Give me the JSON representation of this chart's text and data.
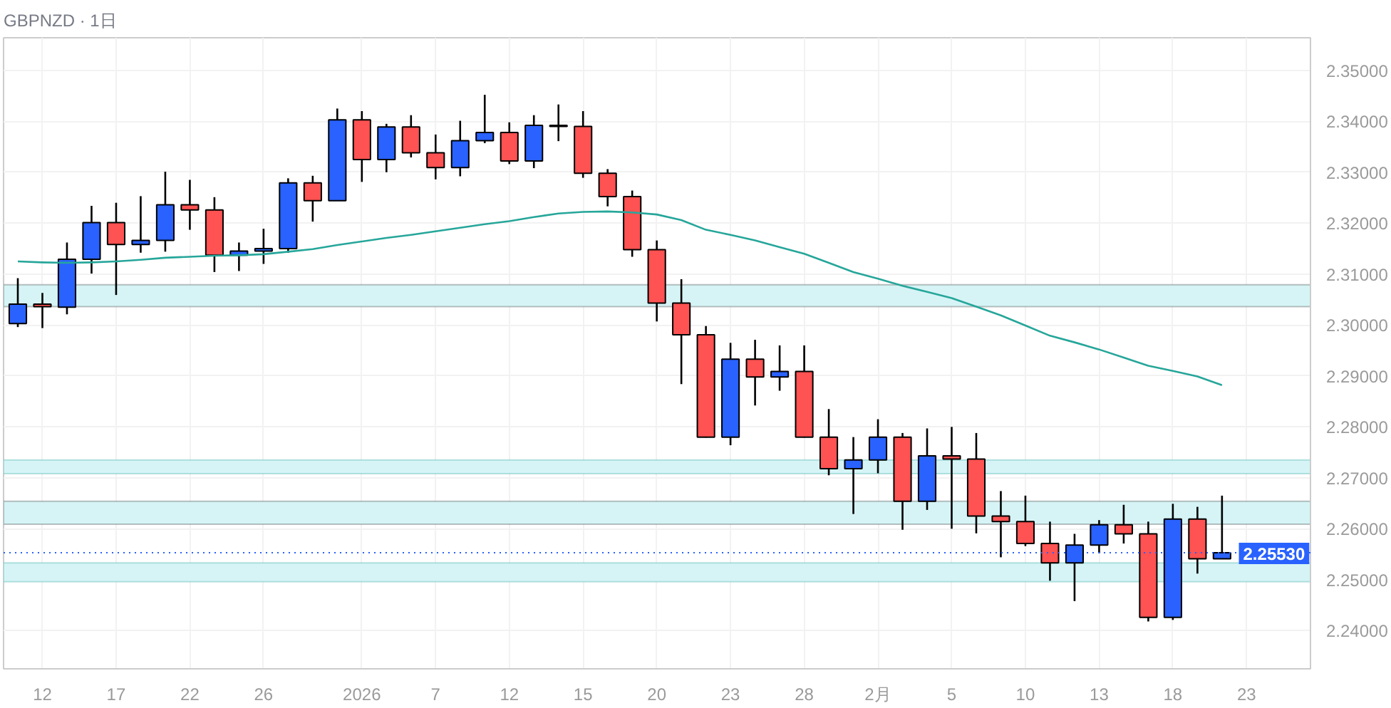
{
  "chart_data": {
    "type": "candlestick",
    "title": "GBPNZD · 1日",
    "categories": [
      null,
      "12",
      null,
      null,
      "17",
      null,
      null,
      "22",
      null,
      null,
      "26",
      null,
      null,
      null,
      "2026",
      null,
      null,
      "7",
      null,
      null,
      "12",
      null,
      null,
      "15",
      null,
      null,
      "20",
      null,
      null,
      "23",
      null,
      null,
      "28",
      null,
      null,
      "2月",
      null,
      null,
      "5",
      null,
      null,
      "10",
      null,
      null,
      "13",
      null,
      null,
      "18",
      null,
      null,
      "23"
    ],
    "ylim": [
      2.2325,
      2.3564
    ],
    "yticks": [
      {
        "value": 2.24,
        "label": "2.24000"
      },
      {
        "value": 2.25,
        "label": "2.25000"
      },
      {
        "value": 2.26,
        "label": "2.26000"
      },
      {
        "value": 2.27,
        "label": "2.27000"
      },
      {
        "value": 2.28,
        "label": "2.28000"
      },
      {
        "value": 2.29,
        "label": "2.29000"
      },
      {
        "value": 2.3,
        "label": "2.30000"
      },
      {
        "value": 2.31,
        "label": "2.31000"
      },
      {
        "value": 2.32,
        "label": "2.32000"
      },
      {
        "value": 2.33,
        "label": "2.33000"
      },
      {
        "value": 2.34,
        "label": "2.34000"
      },
      {
        "value": 2.35,
        "label": "2.35000"
      }
    ],
    "grid": true,
    "series": [
      {
        "type": "line",
        "color": "#26a69a",
        "values": [
          2.3125,
          2.3123,
          2.3122,
          2.3123,
          2.3125,
          2.3128,
          2.3132,
          2.3134,
          2.3136,
          2.3137,
          2.3139,
          2.3144,
          2.3149,
          2.3157,
          2.3164,
          2.3171,
          2.3177,
          2.3184,
          2.3191,
          2.3198,
          2.3204,
          2.3212,
          2.3219,
          2.3222,
          2.3223,
          2.3221,
          2.3217,
          2.3206,
          2.3187,
          2.3177,
          2.3166,
          2.3153,
          2.314,
          2.3122,
          2.3104,
          2.3091,
          2.3077,
          2.3065,
          2.3053,
          2.3036,
          2.3019,
          2.2999,
          2.2979,
          2.2966,
          2.2952,
          2.2936,
          2.292,
          2.291,
          2.2899,
          2.2882,
          null
        ]
      },
      {
        "ohlc": [
          [
            2.3003,
            2.3092,
            2.2996,
            2.3041
          ],
          [
            2.3041,
            2.3063,
            2.2994,
            2.3036
          ],
          [
            2.3035,
            2.3162,
            2.3021,
            2.3129
          ],
          [
            2.3129,
            2.3234,
            2.3101,
            2.3201
          ],
          [
            2.3201,
            2.324,
            2.3059,
            2.3158
          ],
          [
            2.3158,
            2.3253,
            2.3142,
            2.3166
          ],
          [
            2.3166,
            2.3301,
            2.3144,
            2.3236
          ],
          [
            2.3236,
            2.3285,
            2.3187,
            2.3226
          ],
          [
            2.3226,
            2.3251,
            2.3104,
            2.3137
          ],
          [
            2.3137,
            2.3162,
            2.3106,
            2.3145
          ],
          [
            2.3145,
            2.3189,
            2.312,
            2.315
          ],
          [
            2.315,
            2.3288,
            2.3142,
            2.3279
          ],
          [
            2.3279,
            2.3293,
            2.3203,
            2.3244
          ],
          [
            2.3244,
            2.3425,
            2.3244,
            2.3403
          ],
          [
            2.3403,
            2.342,
            2.3281,
            2.3325
          ],
          [
            2.3325,
            2.3395,
            2.33,
            2.3389
          ],
          [
            2.3389,
            2.3412,
            2.3329,
            2.3338
          ],
          [
            2.3338,
            2.3374,
            2.3286,
            2.3309
          ],
          [
            2.3309,
            2.3401,
            2.3292,
            2.3362
          ],
          [
            2.3362,
            2.3452,
            2.3357,
            2.3378
          ],
          [
            2.3378,
            2.3398,
            2.3316,
            2.3322
          ],
          [
            2.3322,
            2.3412,
            2.3308,
            2.3392
          ],
          [
            2.339,
            2.3433,
            2.3361,
            2.3392
          ],
          [
            2.339,
            2.342,
            2.3289,
            2.3298
          ],
          [
            2.3298,
            2.3306,
            2.3233,
            2.3252
          ],
          [
            2.3252,
            2.3264,
            2.3134,
            2.3148
          ],
          [
            2.3148,
            2.3166,
            2.3007,
            2.3043
          ],
          [
            2.3043,
            2.309,
            2.2884,
            2.2981
          ],
          [
            2.2981,
            2.2998,
            2.2779,
            2.278
          ],
          [
            2.278,
            2.2965,
            2.2764,
            2.2933
          ],
          [
            2.2933,
            2.2971,
            2.2842,
            2.2898
          ],
          [
            2.2898,
            2.296,
            2.2871,
            2.2909
          ],
          [
            2.2909,
            2.296,
            2.2779,
            2.278
          ],
          [
            2.278,
            2.2835,
            2.2705,
            2.2718
          ],
          [
            2.2718,
            2.278,
            2.2629,
            2.2735
          ],
          [
            2.2735,
            2.2815,
            2.2709,
            2.278
          ],
          [
            2.278,
            2.2788,
            2.2598,
            2.2654
          ],
          [
            2.2654,
            2.2797,
            2.2637,
            2.2743
          ],
          [
            2.2743,
            2.28,
            2.26,
            2.2737
          ],
          [
            2.2737,
            2.2788,
            2.2591,
            2.2625
          ],
          [
            2.2625,
            2.2674,
            2.2544,
            2.2614
          ],
          [
            2.2614,
            2.2665,
            2.2566,
            2.2571
          ],
          [
            2.2571,
            2.2614,
            2.2498,
            2.2533
          ],
          [
            2.2533,
            2.259,
            2.2458,
            2.2568
          ],
          [
            2.2568,
            2.2617,
            2.2552,
            2.2608
          ],
          [
            2.2608,
            2.2647,
            2.2571,
            2.259
          ],
          [
            2.259,
            2.2614,
            2.2418,
            2.2426
          ],
          [
            2.2426,
            2.2649,
            2.2421,
            2.2619
          ],
          [
            2.2619,
            2.2643,
            2.2512,
            2.2541
          ],
          [
            2.2541,
            2.2665,
            2.2541,
            2.2553
          ],
          null
        ],
        "colors": [
          "#2962ff",
          "#ff5252",
          "#2962ff",
          "#2962ff",
          "#ff5252",
          "#2962ff",
          "#2962ff",
          "#ff5252",
          "#ff5252",
          "#2962ff",
          "#2962ff",
          "#2962ff",
          "#ff5252",
          "#2962ff",
          "#ff5252",
          "#2962ff",
          "#ff5252",
          "#ff5252",
          "#2962ff",
          "#2962ff",
          "#ff5252",
          "#2962ff",
          "#2962ff",
          "#ff5252",
          "#ff5252",
          "#ff5252",
          "#ff5252",
          "#ff5252",
          "#ff5252",
          "#2962ff",
          "#ff5252",
          "#2962ff",
          "#ff5252",
          "#ff5252",
          "#2962ff",
          "#2962ff",
          "#ff5252",
          "#2962ff",
          "#ff5252",
          "#ff5252",
          "#ff5252",
          "#ff5252",
          "#ff5252",
          "#2962ff",
          "#2962ff",
          "#ff5252",
          "#ff5252",
          "#2962ff",
          "#ff5252",
          "#2962ff",
          null
        ]
      }
    ],
    "bands": [
      {
        "axis": "y",
        "from": 2.3036,
        "to": 2.3079,
        "color": "#333333"
      },
      {
        "axis": "y",
        "from": 2.2708,
        "to": 2.2735,
        "color": "#26a69a"
      },
      {
        "axis": "y",
        "from": 2.2609,
        "to": 2.2654,
        "color": "#333333"
      },
      {
        "axis": "y",
        "from": 2.2496,
        "to": 2.2533,
        "color": "#26a69a"
      }
    ],
    "ref_lines": [
      {
        "axis": "y",
        "value": 2.2553,
        "label": "2.25530",
        "color": "#2962ff",
        "line_style": "dotted"
      }
    ]
  }
}
